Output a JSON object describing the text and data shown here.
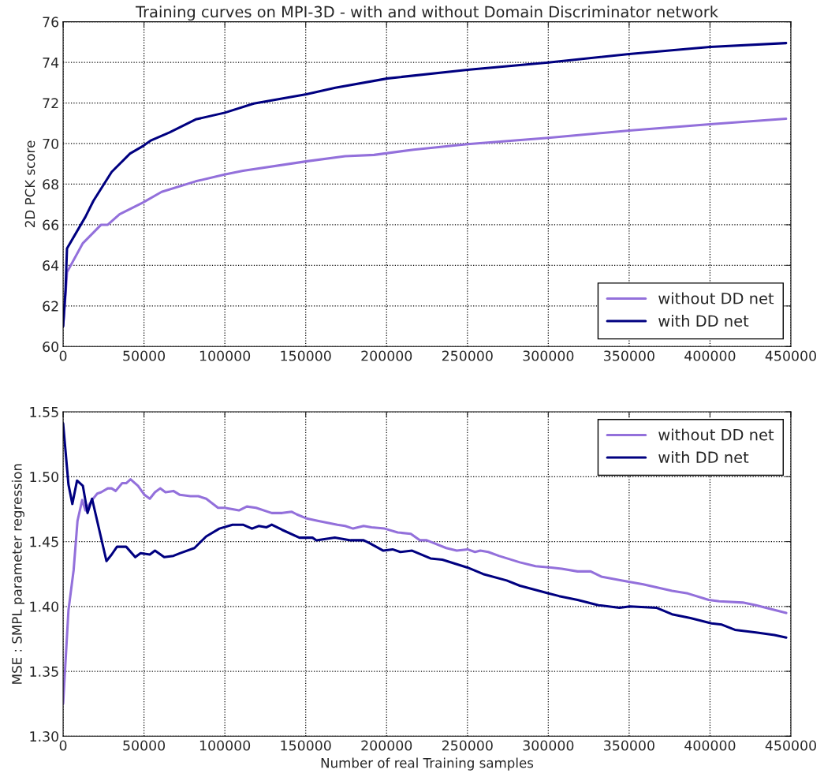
{
  "chart_data": [
    {
      "type": "line",
      "title": "Training curves on MPI-3D - with and without Domain Discriminator network",
      "ylabel": "2D PCK score",
      "xlim": [
        0,
        450000
      ],
      "xticks": [
        0,
        50000,
        100000,
        150000,
        200000,
        250000,
        300000,
        350000,
        400000,
        450000
      ],
      "ylim": [
        60,
        76
      ],
      "yticks": [
        60,
        62,
        64,
        66,
        68,
        70,
        72,
        74,
        76
      ],
      "grid": true,
      "legend": "bottom right",
      "marker": "none",
      "line_style": "solid",
      "series": [
        {
          "name": "without DD net",
          "color": "#9370db",
          "x": [
            0,
            1500,
            2400,
            12200,
            23500,
            27600,
            34900,
            49500,
            60900,
            82000,
            99800,
            111200,
            150100,
            174400,
            192300,
            216700,
            250000,
            300000,
            350000,
            400000,
            447000
          ],
          "values": [
            61.0,
            62.6,
            63.66,
            65.09,
            66.0,
            66.0,
            66.52,
            67.1,
            67.62,
            68.14,
            68.47,
            68.66,
            69.12,
            69.38,
            69.44,
            69.7,
            69.97,
            70.28,
            70.64,
            70.95,
            71.22
          ]
        },
        {
          "name": "with DD net",
          "color": "#000080",
          "x": [
            0,
            1500,
            2400,
            13800,
            18700,
            30000,
            41400,
            49600,
            54500,
            65800,
            82000,
            100000,
            117900,
            150400,
            168300,
            200800,
            250000,
            300000,
            350000,
            400000,
            447000
          ],
          "values": [
            61.0,
            62.8,
            64.83,
            66.39,
            67.17,
            68.6,
            69.51,
            69.89,
            70.16,
            70.55,
            71.19,
            71.52,
            71.97,
            72.43,
            72.75,
            73.21,
            73.63,
            73.99,
            74.41,
            74.76,
            74.95
          ]
        }
      ]
    },
    {
      "type": "line",
      "xlabel": "Number of real Training samples",
      "ylabel": "MSE : SMPL parameter regression",
      "xlim": [
        0,
        450000
      ],
      "xticks": [
        0,
        50000,
        100000,
        150000,
        200000,
        250000,
        300000,
        350000,
        400000,
        450000
      ],
      "ylim": [
        1.3,
        1.55
      ],
      "yticks": [
        {
          "value": 1.3,
          "label": "1.30"
        },
        {
          "value": 1.35,
          "label": "1.35"
        },
        {
          "value": 1.4,
          "label": "1.40"
        },
        {
          "value": 1.45,
          "label": "1.45"
        },
        {
          "value": 1.5,
          "label": "1.50"
        },
        {
          "value": 1.55,
          "label": "1.55"
        }
      ],
      "grid": true,
      "legend": "top right",
      "marker": "none",
      "line_style": "solid",
      "series": [
        {
          "name": "without DD net",
          "color": "#9370db",
          "x": [
            0,
            3300,
            6500,
            8900,
            11800,
            13800,
            17900,
            21100,
            23500,
            27600,
            30000,
            32500,
            36500,
            39000,
            41700,
            46300,
            50300,
            53600,
            56800,
            60000,
            63300,
            68200,
            72200,
            78700,
            83600,
            88500,
            95800,
            99800,
            104700,
            108700,
            113600,
            119300,
            129000,
            135500,
            141200,
            144400,
            150100,
            157400,
            169600,
            174400,
            179300,
            185800,
            190700,
            198800,
            206900,
            215000,
            220700,
            224800,
            228800,
            236900,
            243400,
            250000,
            254700,
            258000,
            262900,
            269400,
            282400,
            292100,
            301800,
            308300,
            318100,
            326200,
            332700,
            345700,
            358700,
            376500,
            386300,
            399200,
            405700,
            420300,
            428400,
            447100
          ],
          "values": [
            1.325,
            1.397,
            1.428,
            1.466,
            1.482,
            1.474,
            1.482,
            1.487,
            1.488,
            1.491,
            1.491,
            1.489,
            1.495,
            1.495,
            1.498,
            1.493,
            1.486,
            1.483,
            1.488,
            1.491,
            1.488,
            1.489,
            1.486,
            1.485,
            1.485,
            1.483,
            1.476,
            1.476,
            1.475,
            1.474,
            1.477,
            1.476,
            1.472,
            1.472,
            1.473,
            1.471,
            1.468,
            1.466,
            1.463,
            1.462,
            1.46,
            1.462,
            1.461,
            1.46,
            1.457,
            1.456,
            1.451,
            1.451,
            1.449,
            1.445,
            1.443,
            1.444,
            1.442,
            1.443,
            1.442,
            1.439,
            1.434,
            1.431,
            1.43,
            1.429,
            1.427,
            1.427,
            1.423,
            1.42,
            1.417,
            1.412,
            1.41,
            1.405,
            1.404,
            1.403,
            1.401,
            1.395
          ]
        },
        {
          "name": "with DD net",
          "color": "#000080",
          "x": [
            0,
            3300,
            5700,
            8600,
            12200,
            15100,
            17900,
            26800,
            30000,
            33300,
            39000,
            44600,
            47900,
            53600,
            56800,
            62500,
            68200,
            72200,
            81200,
            88500,
            96600,
            104700,
            111200,
            116800,
            120900,
            125800,
            129000,
            135500,
            146100,
            154200,
            156600,
            168000,
            177700,
            185800,
            189100,
            198000,
            203700,
            208500,
            215800,
            227200,
            234500,
            250000,
            259700,
            274300,
            282400,
            300200,
            306700,
            318100,
            331000,
            344000,
            350500,
            366800,
            376500,
            387900,
            400900,
            407300,
            415400,
            428400,
            439800,
            447100
          ],
          "values": [
            1.541,
            1.494,
            1.479,
            1.497,
            1.493,
            1.472,
            1.483,
            1.435,
            1.44,
            1.446,
            1.446,
            1.438,
            1.441,
            1.44,
            1.443,
            1.438,
            1.439,
            1.441,
            1.445,
            1.454,
            1.46,
            1.463,
            1.463,
            1.46,
            1.462,
            1.461,
            1.463,
            1.459,
            1.453,
            1.453,
            1.451,
            1.453,
            1.451,
            1.451,
            1.449,
            1.443,
            1.444,
            1.442,
            1.443,
            1.437,
            1.436,
            1.43,
            1.425,
            1.42,
            1.416,
            1.41,
            1.408,
            1.405,
            1.401,
            1.399,
            1.4,
            1.399,
            1.394,
            1.391,
            1.387,
            1.386,
            1.382,
            1.38,
            1.378,
            1.376
          ]
        }
      ]
    }
  ]
}
